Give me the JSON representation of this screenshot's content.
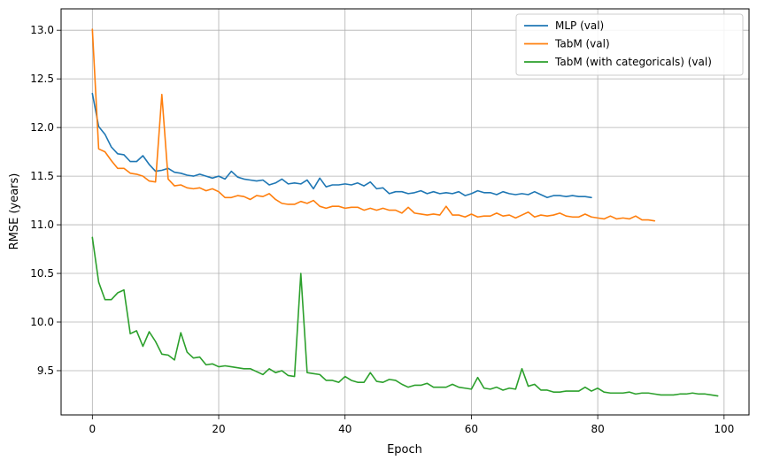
{
  "chart_data": {
    "type": "line",
    "title": "",
    "xlabel": "Epoch",
    "ylabel": "RMSE (years)",
    "xlim": [
      -4.95,
      103.95
    ],
    "ylim": [
      9.045,
      13.22
    ],
    "xticks": [
      0,
      20,
      40,
      60,
      80,
      100
    ],
    "yticks": [
      9.5,
      10.0,
      10.5,
      11.0,
      11.5,
      12.0,
      12.5,
      13.0
    ],
    "xtick_labels": [
      "0",
      "20",
      "40",
      "60",
      "80",
      "100"
    ],
    "ytick_labels": [
      "9.5",
      "10.0",
      "10.5",
      "11.0",
      "11.5",
      "12.0",
      "12.5",
      "13.0"
    ],
    "grid": true,
    "legend_position": "top-right",
    "series": [
      {
        "name": "MLP (val)",
        "color": "#1f77b4",
        "values": [
          12.35,
          12.01,
          11.93,
          11.8,
          11.73,
          11.72,
          11.65,
          11.65,
          11.71,
          11.62,
          11.55,
          11.56,
          11.58,
          11.54,
          11.53,
          11.51,
          11.5,
          11.52,
          11.5,
          11.48,
          11.5,
          11.47,
          11.55,
          11.49,
          11.47,
          11.46,
          11.45,
          11.46,
          11.41,
          11.43,
          11.47,
          11.42,
          11.43,
          11.42,
          11.46,
          11.37,
          11.48,
          11.39,
          11.41,
          11.41,
          11.42,
          11.41,
          11.43,
          11.4,
          11.44,
          11.37,
          11.38,
          11.32,
          11.34,
          11.34,
          11.32,
          11.33,
          11.35,
          11.32,
          11.34,
          11.32,
          11.33,
          11.32,
          11.34,
          11.3,
          11.32,
          11.35,
          11.33,
          11.33,
          11.31,
          11.34,
          11.32,
          11.31,
          11.32,
          11.31,
          11.34,
          11.31,
          11.28,
          11.3,
          11.3,
          11.29,
          11.3,
          11.29,
          11.29,
          11.28
        ]
      },
      {
        "name": "TabM (val)",
        "color": "#ff7f0e",
        "values": [
          13.01,
          11.78,
          11.75,
          11.66,
          11.58,
          11.58,
          11.53,
          11.52,
          11.5,
          11.45,
          11.44,
          12.34,
          11.47,
          11.4,
          11.41,
          11.38,
          11.37,
          11.38,
          11.35,
          11.37,
          11.34,
          11.28,
          11.28,
          11.3,
          11.29,
          11.26,
          11.3,
          11.29,
          11.32,
          11.26,
          11.22,
          11.21,
          11.21,
          11.24,
          11.22,
          11.25,
          11.19,
          11.17,
          11.19,
          11.19,
          11.17,
          11.18,
          11.18,
          11.15,
          11.17,
          11.15,
          11.17,
          11.15,
          11.15,
          11.12,
          11.18,
          11.12,
          11.11,
          11.1,
          11.11,
          11.1,
          11.19,
          11.1,
          11.1,
          11.08,
          11.11,
          11.08,
          11.09,
          11.09,
          11.12,
          11.09,
          11.1,
          11.07,
          11.1,
          11.13,
          11.08,
          11.1,
          11.09,
          11.1,
          11.12,
          11.09,
          11.08,
          11.08,
          11.11,
          11.08,
          11.07,
          11.06,
          11.09,
          11.06,
          11.07,
          11.06,
          11.09,
          11.05,
          11.05,
          11.04
        ]
      },
      {
        "name": "TabM (with categoricals) (val)",
        "color": "#2ca02c",
        "values": [
          10.87,
          10.41,
          10.23,
          10.23,
          10.3,
          10.33,
          9.88,
          9.91,
          9.75,
          9.9,
          9.8,
          9.67,
          9.66,
          9.61,
          9.89,
          9.69,
          9.63,
          9.64,
          9.56,
          9.57,
          9.54,
          9.55,
          9.54,
          9.53,
          9.52,
          9.52,
          9.49,
          9.46,
          9.52,
          9.48,
          9.5,
          9.45,
          9.44,
          10.5,
          9.48,
          9.47,
          9.46,
          9.4,
          9.4,
          9.38,
          9.44,
          9.4,
          9.38,
          9.38,
          9.48,
          9.39,
          9.38,
          9.41,
          9.4,
          9.36,
          9.33,
          9.35,
          9.35,
          9.37,
          9.33,
          9.33,
          9.33,
          9.36,
          9.33,
          9.32,
          9.31,
          9.43,
          9.32,
          9.31,
          9.33,
          9.3,
          9.32,
          9.31,
          9.52,
          9.34,
          9.36,
          9.3,
          9.3,
          9.28,
          9.28,
          9.29,
          9.29,
          9.29,
          9.33,
          9.29,
          9.32,
          9.28,
          9.27,
          9.27,
          9.27,
          9.28,
          9.26,
          9.27,
          9.27,
          9.26,
          9.25,
          9.25,
          9.25,
          9.26,
          9.26,
          9.27,
          9.26,
          9.26,
          9.25,
          9.24
        ]
      }
    ]
  }
}
